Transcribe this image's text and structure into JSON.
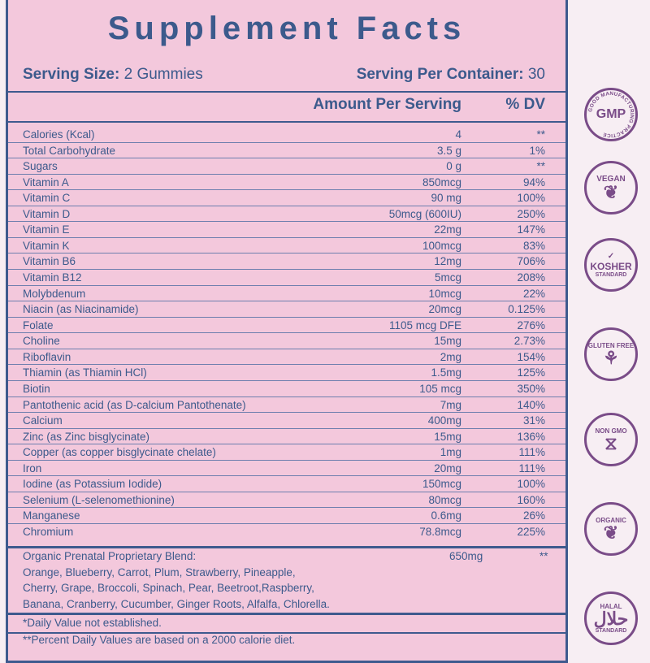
{
  "title": "Supplement Facts",
  "serving_size_label": "Serving Size:",
  "serving_size_value": "2 Gummies",
  "servings_per_container_label": "Serving Per Container:",
  "servings_per_container_value": "30",
  "header": {
    "amount": "Amount Per Serving",
    "dv": "% DV"
  },
  "rows": [
    {
      "name": "Calories (Kcal)",
      "amount": "4",
      "dv": "**"
    },
    {
      "name": "Total Carbohydrate",
      "amount": "3.5 g",
      "dv": "1%"
    },
    {
      "name": "Sugars",
      "amount": "0 g",
      "dv": "**"
    },
    {
      "name": "Vitamin A",
      "amount": "850mcg",
      "dv": "94%"
    },
    {
      "name": "Vitamin C",
      "amount": "90 mg",
      "dv": "100%"
    },
    {
      "name": "Vitamin D",
      "amount": "50mcg (600IU)",
      "dv": "250%"
    },
    {
      "name": "Vitamin E",
      "amount": "22mg",
      "dv": "147%"
    },
    {
      "name": "Vitamin K",
      "amount": "100mcg",
      "dv": "83%"
    },
    {
      "name": "Vitamin B6",
      "amount": "12mg",
      "dv": "706%"
    },
    {
      "name": "Vitamin B12",
      "amount": "5mcg",
      "dv": "208%"
    },
    {
      "name": "Molybdenum",
      "amount": "10mcg",
      "dv": "22%"
    },
    {
      "name": "Niacin (as Niacinamide)",
      "amount": "20mcg",
      "dv": "0.125%"
    },
    {
      "name": "Folate",
      "amount": "1105 mcg DFE",
      "dv": "276%"
    },
    {
      "name": "Choline",
      "amount": "15mg",
      "dv": "2.73%"
    },
    {
      "name": "Riboflavin",
      "amount": "2mg",
      "dv": "154%"
    },
    {
      "name": "Thiamin (as Thiamin HCl)",
      "amount": "1.5mg",
      "dv": "125%"
    },
    {
      "name": "Biotin",
      "amount": "105 mcg",
      "dv": "350%"
    },
    {
      "name": "Pantothenic acid (as D-calcium Pantothenate)",
      "amount": "7mg",
      "dv": "140%"
    },
    {
      "name": "Calcium",
      "amount": "400mg",
      "dv": "31%"
    },
    {
      "name": "Zinc (as Zinc bisglycinate)",
      "amount": "15mg",
      "dv": "136%"
    },
    {
      "name": "Copper (as copper bisglycinate chelate)",
      "amount": "1mg",
      "dv": "111%"
    },
    {
      "name": "Iron",
      "amount": "20mg",
      "dv": "111%"
    },
    {
      "name": "Iodine (as Potassium Iodide)",
      "amount": "150mcg",
      "dv": "100%"
    },
    {
      "name": "Selenium (L-selenomethionine)",
      "amount": "80mcg",
      "dv": "160%"
    },
    {
      "name": "Manganese",
      "amount": "0.6mg",
      "dv": "26%"
    },
    {
      "name": "Chromium",
      "amount": "78.8mcg",
      "dv": "225%"
    }
  ],
  "blend": {
    "name": "Organic Prenatal Proprietary Blend:",
    "amount": "650mg",
    "dv": "**",
    "lines": [
      "Orange, Blueberry, Carrot, Plum, Strawberry, Pineapple,",
      "Cherry, Grape, Broccoli, Spinach, Pear, Beetroot,Raspberry,",
      "Banana, Cranberry, Cucumber, Ginger Roots, Alfalfa, Chlorella."
    ]
  },
  "footnotes": [
    "*Daily Value not established.",
    "**Percent Daily Values are based on a 2000 calorie diet."
  ],
  "badges": [
    {
      "icon": "gmp-seal-icon",
      "main": "GMP",
      "sub": "GOOD MANUFACTURING PRACTICE"
    },
    {
      "icon": "leaf-icon",
      "main": "VEGAN",
      "sub": ""
    },
    {
      "icon": "check-icon",
      "main": "KOSHER",
      "sub": "STANDARD"
    },
    {
      "icon": "wheat-icon",
      "main": "GLUTEN FREE",
      "sub": ""
    },
    {
      "icon": "dna-icon",
      "main": "NON GMO",
      "sub": ""
    },
    {
      "icon": "sprout-icon",
      "main": "ORGANIC",
      "sub": ""
    },
    {
      "icon": "halal-icon",
      "main": "HALAL",
      "sub": "STANDARD"
    }
  ],
  "colors": {
    "panel": "#f3c8dc",
    "text": "#3c5a8c",
    "badge": "#7a4c88"
  }
}
